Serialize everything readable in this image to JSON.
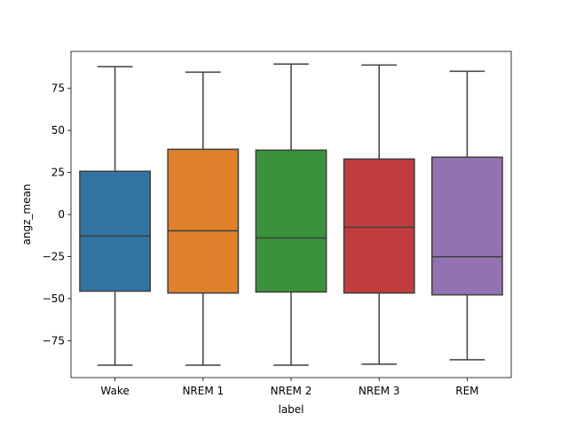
{
  "chart_data": {
    "type": "box",
    "title": "",
    "xlabel": "label",
    "ylabel": "angz_mean",
    "categories": [
      "Wake",
      "NREM 1",
      "NREM 2",
      "NREM 3",
      "REM"
    ],
    "boxes": [
      {
        "whisker_low": -89.6,
        "q1": -45.6,
        "median": -12.8,
        "q3": 25.7,
        "whisker_high": 87.9,
        "color": "#3274a1"
      },
      {
        "whisker_low": -89.6,
        "q1": -46.7,
        "median": -9.7,
        "q3": 38.8,
        "whisker_high": 84.7,
        "color": "#e1812c"
      },
      {
        "whisker_low": -89.6,
        "q1": -46.1,
        "median": -13.9,
        "q3": 38.3,
        "whisker_high": 89.5,
        "color": "#3a923a"
      },
      {
        "whisker_low": -89.0,
        "q1": -46.7,
        "median": -7.6,
        "q3": 33.0,
        "whisker_high": 88.9,
        "color": "#c03d3e"
      },
      {
        "whisker_low": -86.4,
        "q1": -47.8,
        "median": -25.1,
        "q3": 34.1,
        "whisker_high": 85.2,
        "color": "#9372b2"
      }
    ],
    "y_ticks": [
      75,
      50,
      25,
      0,
      -25,
      -50,
      -75
    ],
    "y_tick_labels": [
      "75",
      "50",
      "25",
      "0",
      "−25",
      "−50",
      "−75"
    ],
    "ylim": [
      -97,
      97
    ],
    "grid": false,
    "legend": "none"
  }
}
